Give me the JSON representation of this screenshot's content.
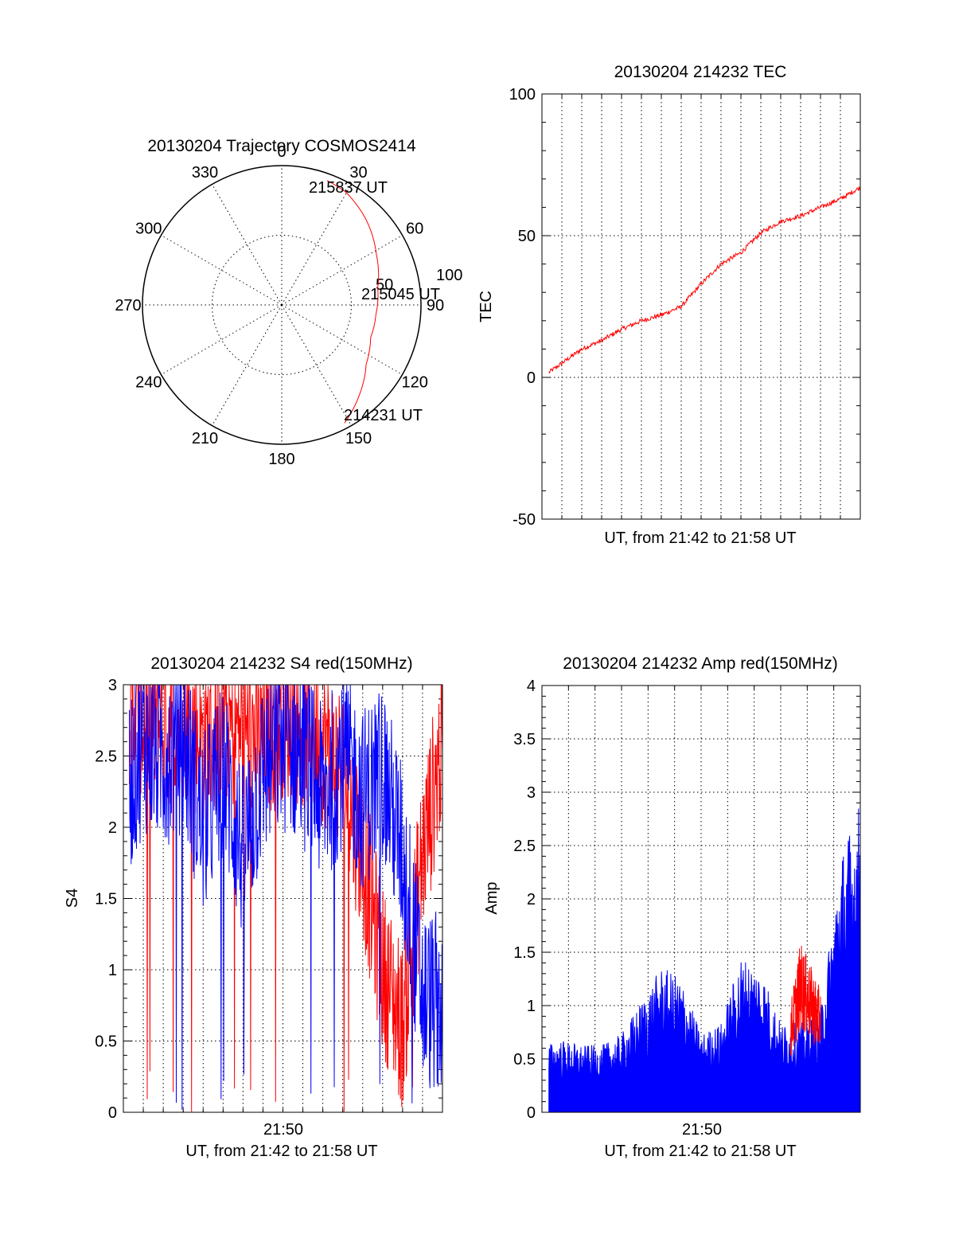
{
  "chart_data": [
    {
      "type": "polar",
      "title": "20130204 Trajectory COSMOS2414",
      "angle_labels": [
        "0",
        "30",
        "60",
        "90",
        "120",
        "150",
        "180",
        "210",
        "240",
        "270",
        "300",
        "330"
      ],
      "radial_labels": [
        "50",
        "100"
      ],
      "rlim": [
        0,
        100
      ],
      "grid": true,
      "series": [
        {
          "color": "#ff0000",
          "points": [
            {
              "az": 152,
              "r": 96
            },
            {
              "az": 140,
              "r": 86
            },
            {
              "az": 125,
              "r": 74
            },
            {
              "az": 110,
              "r": 68
            },
            {
              "az": 96,
              "r": 68
            },
            {
              "az": 80,
              "r": 70
            },
            {
              "az": 62,
              "r": 77
            },
            {
              "az": 45,
              "r": 86
            },
            {
              "az": 30,
              "r": 93
            },
            {
              "az": 20,
              "r": 95
            }
          ]
        }
      ],
      "annotations": [
        {
          "text": "215837 UT",
          "az": 20,
          "r": 95
        },
        {
          "text": "215045 UT",
          "az": 96,
          "r": 68
        },
        {
          "text": "214231 UT",
          "az": 152,
          "r": 96
        }
      ]
    },
    {
      "type": "line",
      "title": "20130204 214232 TEC",
      "xlabel": "UT, from 21:42 to 21:58 UT",
      "ylabel": "TEC",
      "xlim": [
        "21:42",
        "21:58"
      ],
      "ylim": [
        -50,
        100
      ],
      "y_ticks": [
        "-50",
        "0",
        "50",
        "100"
      ],
      "grid": true,
      "series": [
        {
          "color": "#ff0000",
          "x": [
            "21:42",
            "21:43",
            "21:44",
            "21:45",
            "21:46",
            "21:47",
            "21:48",
            "21:49",
            "21:50",
            "21:51",
            "21:52",
            "21:53",
            "21:54",
            "21:55",
            "21:56",
            "21:57",
            "21:58"
          ],
          "values": [
            0,
            5,
            10,
            13,
            17,
            20,
            22,
            25,
            33,
            40,
            44,
            51,
            55,
            57,
            60,
            63,
            67
          ]
        }
      ]
    },
    {
      "type": "line",
      "title": "20130204 214232 S4 red(150MHz)",
      "xlabel": "UT, from 21:42 to 21:58 UT",
      "ylabel": "S4",
      "x_tick_labels": [
        "21:50"
      ],
      "xlim": [
        "21:42",
        "21:58"
      ],
      "ylim": [
        0,
        3
      ],
      "y_ticks": [
        "0",
        "0.5",
        "1",
        "1.5",
        "2",
        "2.5",
        "3"
      ],
      "grid": true,
      "series": [
        {
          "color": "#ff0000",
          "x": [
            "21:42",
            "21:43",
            "21:44",
            "21:45",
            "21:46",
            "21:47",
            "21:48",
            "21:49",
            "21:50",
            "21:51",
            "21:52",
            "21:53",
            "21:54",
            "21:55",
            "21:56",
            "21:57",
            "21:58"
          ],
          "values": [
            2.9,
            2.8,
            2.7,
            2.8,
            2.6,
            2.7,
            2.7,
            2.6,
            2.8,
            2.7,
            2.6,
            2.4,
            1.8,
            1.0,
            0.6,
            1.8,
            2.6
          ]
        },
        {
          "color": "#0000ff",
          "x": [
            "21:42",
            "21:43",
            "21:44",
            "21:45",
            "21:46",
            "21:47",
            "21:48",
            "21:49",
            "21:50",
            "21:51",
            "21:52",
            "21:53",
            "21:54",
            "21:55",
            "21:56",
            "21:57",
            "21:58"
          ],
          "values": [
            2.2,
            2.6,
            2.5,
            2.6,
            2.0,
            2.4,
            1.8,
            2.4,
            2.6,
            2.5,
            2.2,
            2.5,
            2.2,
            2.4,
            1.8,
            0.8,
            0.75
          ]
        }
      ]
    },
    {
      "type": "area",
      "title": "20130204 214232 Amp red(150MHz)",
      "xlabel": "UT, from 21:42 to 21:58 UT",
      "ylabel": "Amp",
      "x_tick_labels": [
        "21:50"
      ],
      "xlim": [
        "21:42",
        "21:58"
      ],
      "ylim": [
        0,
        4
      ],
      "y_ticks": [
        "0",
        "0.5",
        "1",
        "1.5",
        "2",
        "2.5",
        "3",
        "3.5",
        "4"
      ],
      "grid": true,
      "series": [
        {
          "color": "#0000ff",
          "x": [
            "21:42",
            "21:43",
            "21:44",
            "21:45",
            "21:46",
            "21:47",
            "21:48",
            "21:49",
            "21:50",
            "21:51",
            "21:52",
            "21:53",
            "21:54",
            "21:55",
            "21:56",
            "21:57",
            "21:58"
          ],
          "values": [
            0.6,
            0.65,
            0.6,
            0.6,
            0.7,
            1.0,
            1.3,
            1.2,
            0.7,
            0.8,
            1.4,
            1.3,
            0.8,
            0.8,
            0.9,
            2.3,
            2.8
          ]
        },
        {
          "color": "#ff0000",
          "x": [
            "21:54.5",
            "21:55",
            "21:55.5",
            "21:56"
          ],
          "values": [
            0.9,
            1.4,
            1.2,
            1.0
          ]
        }
      ]
    }
  ]
}
